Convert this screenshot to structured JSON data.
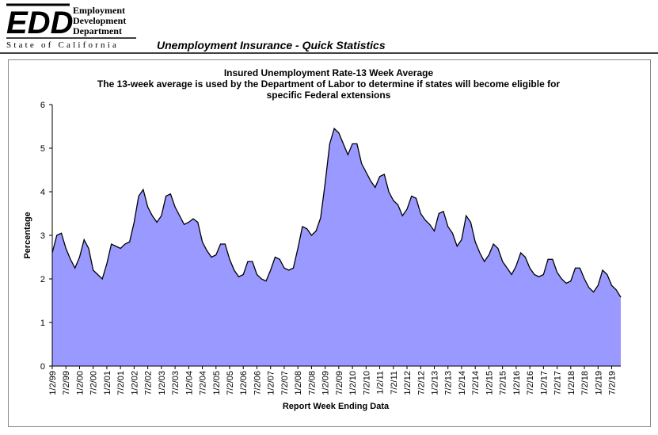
{
  "header": {
    "logo": "EDD",
    "org_lines": [
      "Employment",
      "Development",
      "Department"
    ],
    "state": "State of California",
    "page_title": "Unemployment Insurance - Quick Statistics"
  },
  "chart_data": {
    "type": "area",
    "title": "Insured Unemployment Rate-13 Week Average",
    "subtitle": [
      "The 13-week average is used by the Department of Labor to determine if states will become eligible for",
      "specific Federal extensions"
    ],
    "x_label": "Report Week Ending Data",
    "y_label": "Percentage",
    "color": "#9999ff",
    "line_color": "#000000",
    "ylim": [
      0,
      6
    ],
    "yticks": [
      0,
      1,
      2,
      3,
      4,
      5,
      6
    ],
    "grid": false,
    "categories": [
      "1/2/99",
      null,
      null,
      "7/2/99",
      null,
      null,
      "1/2/00",
      null,
      null,
      "7/2/00",
      null,
      null,
      "1/2/01",
      null,
      null,
      "7/2/01",
      null,
      null,
      "1/2/02",
      null,
      null,
      "7/2/02",
      null,
      null,
      "1/2/03",
      null,
      null,
      "7/2/03",
      null,
      null,
      "1/2/04",
      null,
      null,
      "7/2/04",
      null,
      null,
      "1/2/05",
      null,
      null,
      "7/2/05",
      null,
      null,
      "1/2/06",
      null,
      null,
      "7/2/06",
      null,
      null,
      "1/2/07",
      null,
      null,
      "7/2/07",
      null,
      null,
      "1/2/08",
      null,
      null,
      "7/2/08",
      null,
      null,
      "1/2/09",
      null,
      null,
      "7/2/09",
      null,
      null,
      "1/2/10",
      null,
      null,
      "7/2/10",
      null,
      null,
      "1/2/11",
      null,
      null,
      "7/2/11",
      null,
      null,
      "1/2/12",
      null,
      null,
      "7/2/12",
      null,
      null,
      "1/2/13",
      null,
      null,
      "7/2/13",
      null,
      null,
      "1/2/14",
      null,
      null,
      "7/2/14",
      null,
      null,
      "1/2/15",
      null,
      null,
      "7/2/15",
      null,
      null,
      "1/2/16",
      null,
      null,
      "7/2/16",
      null,
      null,
      "1/2/17",
      null,
      null,
      "7/2/17",
      null,
      null,
      "1/2/18",
      null,
      null,
      "7/2/18",
      null,
      null,
      "1/2/19",
      null,
      null,
      "7/2/19",
      null,
      null
    ],
    "values": [
      2.6,
      3.0,
      3.05,
      2.7,
      2.45,
      2.25,
      2.5,
      2.9,
      2.7,
      2.2,
      2.1,
      2.0,
      2.35,
      2.8,
      2.75,
      2.7,
      2.8,
      2.85,
      3.3,
      3.9,
      4.05,
      3.65,
      3.45,
      3.3,
      3.45,
      3.9,
      3.95,
      3.65,
      3.45,
      3.25,
      3.3,
      3.38,
      3.3,
      2.85,
      2.65,
      2.5,
      2.55,
      2.8,
      2.8,
      2.45,
      2.2,
      2.05,
      2.1,
      2.4,
      2.4,
      2.1,
      2.0,
      1.95,
      2.2,
      2.5,
      2.45,
      2.25,
      2.2,
      2.25,
      2.7,
      3.2,
      3.15,
      3.0,
      3.1,
      3.4,
      4.2,
      5.1,
      5.45,
      5.35,
      5.1,
      4.85,
      5.1,
      5.1,
      4.65,
      4.45,
      4.25,
      4.1,
      4.35,
      4.4,
      4.0,
      3.8,
      3.7,
      3.45,
      3.6,
      3.9,
      3.85,
      3.5,
      3.35,
      3.25,
      3.1,
      3.5,
      3.55,
      3.2,
      3.05,
      2.75,
      2.9,
      3.45,
      3.3,
      2.85,
      2.6,
      2.4,
      2.55,
      2.8,
      2.7,
      2.4,
      2.25,
      2.1,
      2.3,
      2.6,
      2.5,
      2.25,
      2.1,
      2.05,
      2.1,
      2.45,
      2.45,
      2.15,
      2.0,
      1.9,
      1.95,
      2.25,
      2.25,
      2.0,
      1.8,
      1.7,
      1.85,
      2.2,
      2.1,
      1.85,
      1.75,
      1.58
    ]
  }
}
